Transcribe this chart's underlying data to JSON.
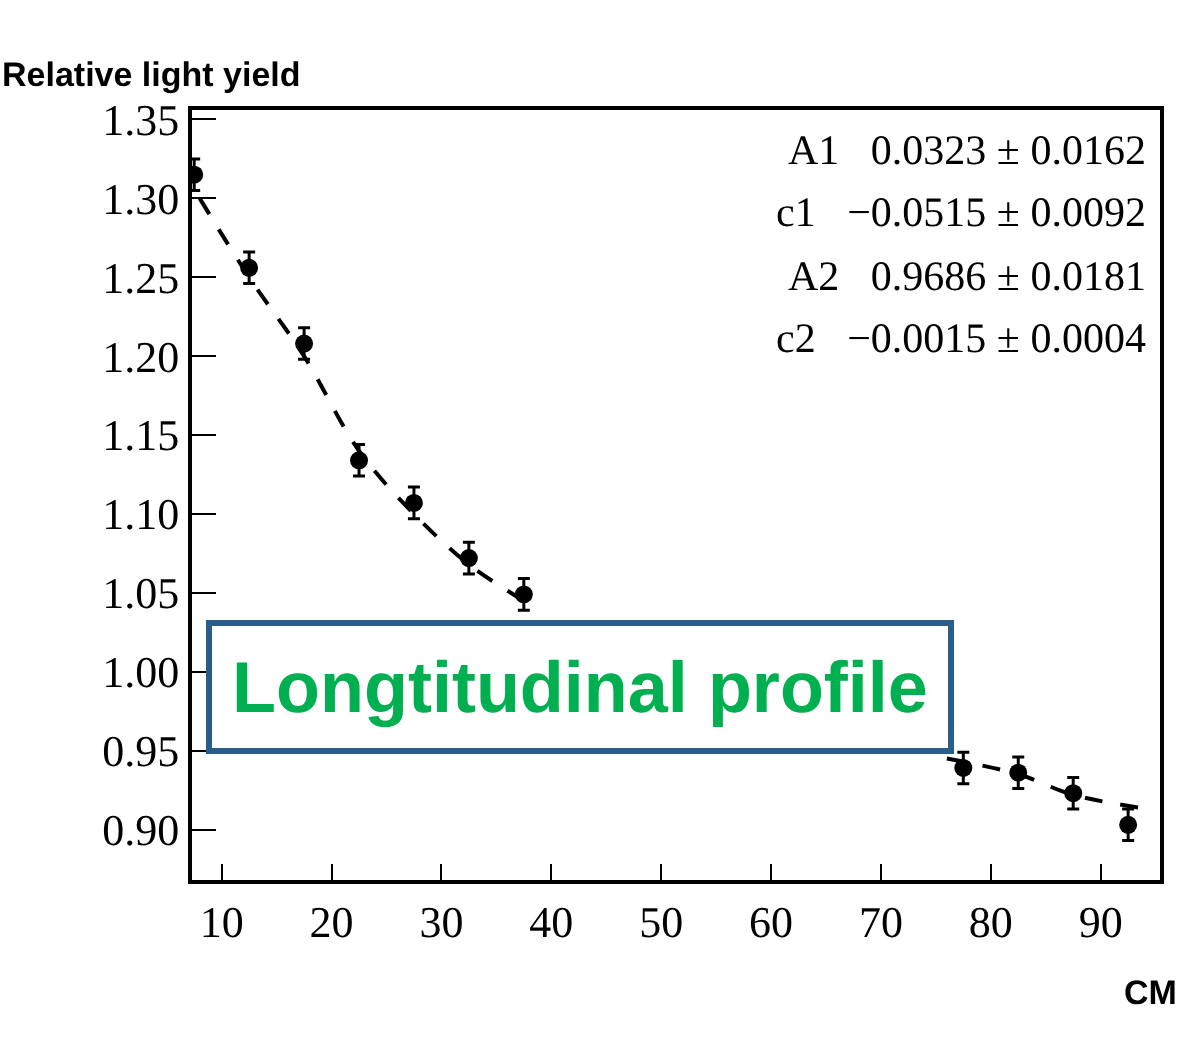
{
  "chart_data": {
    "type": "scatter",
    "xlabel": "CM",
    "ylabel": "Relative light yield",
    "xlim": [
      7.3,
      95.4
    ],
    "ylim": [
      0.868,
      1.356
    ],
    "xticks": [
      10,
      20,
      30,
      40,
      50,
      60,
      70,
      80,
      90
    ],
    "yticks": [
      {
        "value": 0.9,
        "label": "0.90"
      },
      {
        "value": 0.95,
        "label": "0.95"
      },
      {
        "value": 1.0,
        "label": "1.00"
      },
      {
        "value": 1.05,
        "label": "1.05"
      },
      {
        "value": 1.1,
        "label": "1.10"
      },
      {
        "value": 1.15,
        "label": "1.15"
      },
      {
        "value": 1.2,
        "label": "1.20"
      },
      {
        "value": 1.25,
        "label": "1.25"
      },
      {
        "value": 1.3,
        "label": "1.30"
      },
      {
        "value": 1.35,
        "label": "1.35"
      }
    ],
    "series": [
      {
        "color": "#000000",
        "marker": "circle",
        "x": [
          7.5,
          12.5,
          17.5,
          22.5,
          27.5,
          32.5,
          37.5,
          42.5,
          47.5,
          52.5,
          57.5,
          62.5,
          67.5,
          72.5,
          77.5,
          82.5,
          87.5,
          92.5
        ],
        "values": [
          1.315,
          1.256,
          1.208,
          1.134,
          1.107,
          1.072,
          1.049,
          null,
          null,
          null,
          null,
          null,
          null,
          null,
          0.939,
          0.936,
          0.923,
          0.903
        ],
        "errors": [
          0.01,
          0.01,
          0.01,
          0.01,
          0.01,
          0.01,
          0.01,
          null,
          null,
          null,
          null,
          null,
          null,
          null,
          0.01,
          0.01,
          0.01,
          0.01
        ]
      },
      {
        "type": "line",
        "color": "#000000",
        "marker": "none",
        "line_style": "dashed",
        "x": [
          8,
          12.5,
          17.5,
          22.5,
          27.5,
          32.5,
          37.5,
          45,
          70,
          76,
          82.5,
          87.5,
          93.4
        ],
        "values": [
          1.3,
          1.25,
          1.2,
          1.14,
          1.1,
          1.068,
          1.045,
          null,
          null,
          0.945,
          0.935,
          0.922,
          0.914
        ]
      }
    ],
    "annotations": [
      "A1   0.0323 ± 0.0162",
      "c1   −0.0515 ± 0.0092",
      "A2   0.9686 ± 0.0181",
      "c2   −0.0015 ± 0.0004",
      "Longtitudinal profile"
    ]
  }
}
